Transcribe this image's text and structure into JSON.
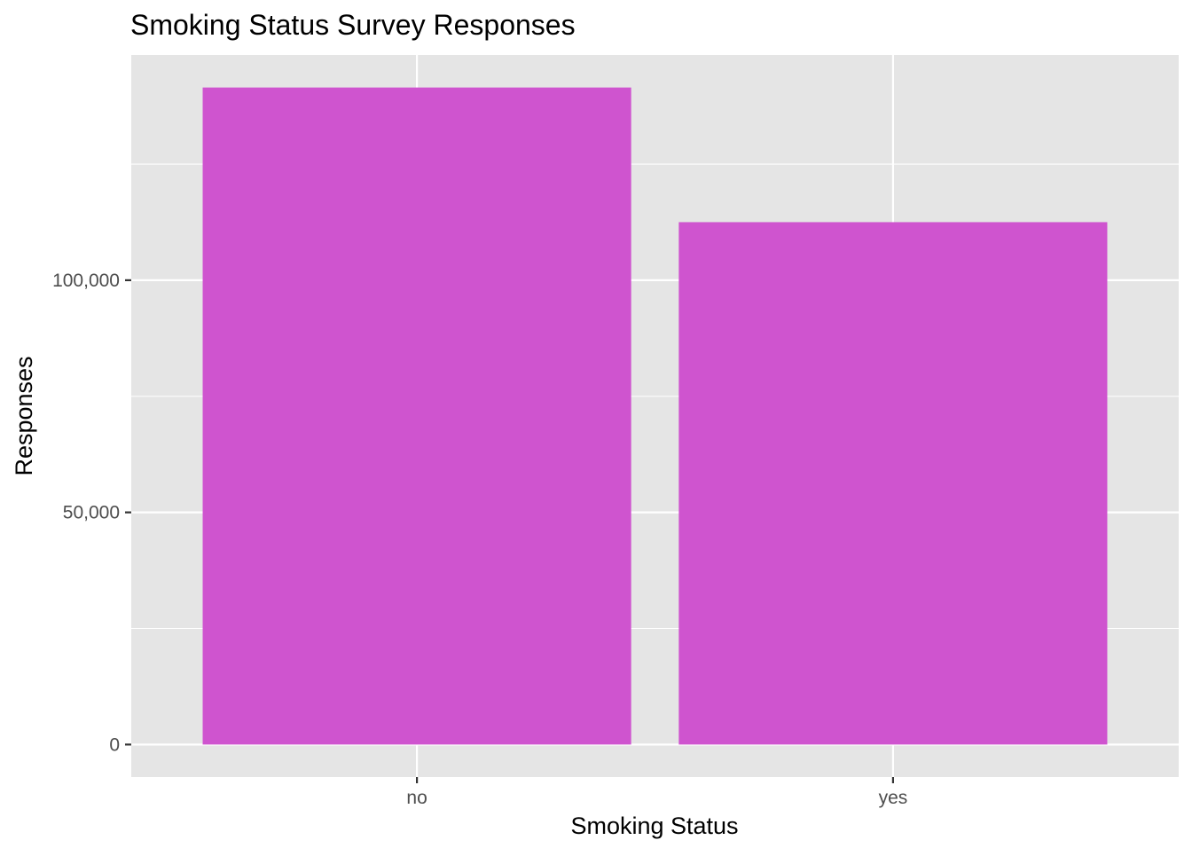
{
  "chart_data": {
    "type": "bar",
    "title": "Smoking Status Survey Responses",
    "xlabel": "Smoking Status",
    "ylabel": "Responses",
    "categories": [
      "no",
      "yes"
    ],
    "values": [
      141500,
      112500
    ],
    "ylim": [
      -7000,
      148500
    ],
    "yticks": [
      0,
      50000,
      100000
    ],
    "ytick_labels": [
      "0",
      "50,000",
      "100,000"
    ],
    "yminor": [
      25000,
      75000,
      125000
    ],
    "grid": true,
    "legend": "none",
    "colors": {
      "bar": "#CF54CF",
      "panel": "#E5E5E5",
      "grid": "#FFFFFF",
      "axis_text": "#4D4D4D",
      "title_text": "#000000"
    }
  }
}
